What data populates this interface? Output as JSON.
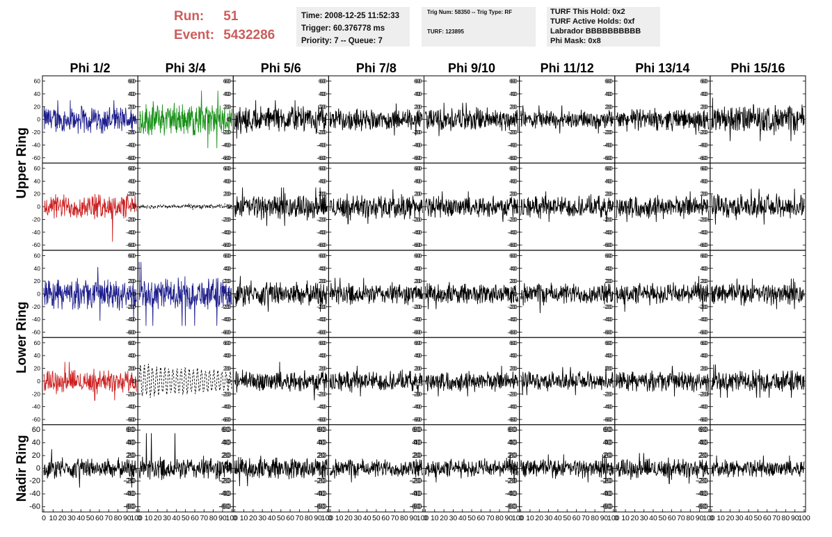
{
  "header": {
    "run_label": "Run:",
    "run_value": "51",
    "event_label": "Event:",
    "event_value": "5432286",
    "time": "Time: 2008-12-25 11:52:33",
    "trigger": "Trigger: 60.376778 ms",
    "priority": "Priority: 7 -- Queue: 7",
    "trig_num": "Trig Num: 58350 -- Trig Type: RF",
    "turf": "TURF: 123895",
    "turf_hold": "TURF This Hold: 0x2",
    "turf_active": "TURF Active Holds: 0xf",
    "labrador": "Labrador BBBBBBBBBB",
    "phi_mask": "Phi Mask: 0x8"
  },
  "chart_data": {
    "type": "line",
    "columns": [
      "Phi 1/2",
      "Phi 3/4",
      "Phi 5/6",
      "Phi 7/8",
      "Phi 9/10",
      "Phi 11/12",
      "Phi 13/14",
      "Phi 15/16"
    ],
    "ring_labels": [
      "Upper Ring",
      "Lower Ring",
      "Nadir Ring"
    ],
    "xlim": [
      0,
      100
    ],
    "ylim": [
      -65,
      65
    ],
    "x_ticks": [
      0,
      10,
      20,
      30,
      40,
      50,
      60,
      70,
      80,
      90,
      100
    ],
    "x_tick_labels": [
      "0",
      "10",
      "20",
      "30",
      "40",
      "50",
      "60",
      "70",
      "80",
      "90",
      "100"
    ],
    "y_ticks": [
      -60,
      -40,
      -20,
      0,
      20,
      40,
      60
    ],
    "grid": false,
    "colors": {
      "blue": "#1c1c8c",
      "green": "#159015",
      "red": "#cc2020",
      "black": "#000000"
    },
    "rows": [
      {
        "ring": "Upper Ring",
        "panels": [
          {
            "color": "blue",
            "amplitude": 19,
            "spike": 30
          },
          {
            "color": "green",
            "amplitude": 24,
            "spike": 45
          },
          {
            "color": "black",
            "amplitude": 19,
            "spike": 30
          },
          {
            "color": "black",
            "amplitude": 15,
            "spike": 25
          },
          {
            "color": "black",
            "amplitude": 17,
            "spike": 26
          },
          {
            "color": "black",
            "amplitude": 13,
            "spike": 22
          },
          {
            "color": "black",
            "amplitude": 15,
            "spike": 24
          },
          {
            "color": "black",
            "amplitude": 20,
            "spike": 34
          }
        ]
      },
      {
        "ring": "Upper Ring",
        "panels": [
          {
            "color": "red",
            "amplitude": 18,
            "spike": 55
          },
          {
            "color": "black",
            "amplitude": 3,
            "spike": 5,
            "style": "dashed"
          },
          {
            "color": "black",
            "amplitude": 17,
            "spike": 30
          },
          {
            "color": "black",
            "amplitude": 17,
            "spike": 27
          },
          {
            "color": "black",
            "amplitude": 15,
            "spike": 24
          },
          {
            "color": "black",
            "amplitude": 15,
            "spike": 24
          },
          {
            "color": "black",
            "amplitude": 16,
            "spike": 24
          },
          {
            "color": "black",
            "amplitude": 17,
            "spike": 28
          }
        ]
      },
      {
        "ring": "Lower Ring",
        "panels": [
          {
            "color": "blue",
            "amplitude": 21,
            "spike": 42
          },
          {
            "color": "blue",
            "amplitude": 22,
            "spike": 50
          },
          {
            "color": "black",
            "amplitude": 17,
            "spike": 28
          },
          {
            "color": "black",
            "amplitude": 15,
            "spike": 25
          },
          {
            "color": "black",
            "amplitude": 15,
            "spike": 24
          },
          {
            "color": "black",
            "amplitude": 15,
            "spike": 30
          },
          {
            "color": "black",
            "amplitude": 15,
            "spike": 28
          },
          {
            "color": "black",
            "amplitude": 15,
            "spike": 24
          }
        ]
      },
      {
        "ring": "Lower Ring",
        "panels": [
          {
            "color": "red",
            "amplitude": 16,
            "spike": 30
          },
          {
            "color": "black",
            "amplitude": 26,
            "spike": 55,
            "style": "dashed"
          },
          {
            "color": "black",
            "amplitude": 15,
            "spike": 30
          },
          {
            "color": "black",
            "amplitude": 14,
            "spike": 24
          },
          {
            "color": "black",
            "amplitude": 14,
            "spike": 24
          },
          {
            "color": "black",
            "amplitude": 13,
            "spike": 22
          },
          {
            "color": "black",
            "amplitude": 14,
            "spike": 24
          },
          {
            "color": "black",
            "amplitude": 15,
            "spike": 26
          }
        ]
      },
      {
        "ring": "Nadir Ring",
        "panels": [
          {
            "color": "black",
            "amplitude": 14,
            "spike": 30
          },
          {
            "color": "black",
            "amplitude": 16,
            "spike": 55
          },
          {
            "color": "black",
            "amplitude": 16,
            "spike": 28
          },
          {
            "color": "black",
            "amplitude": 13,
            "spike": 22
          },
          {
            "color": "black",
            "amplitude": 13,
            "spike": 22
          },
          {
            "color": "black",
            "amplitude": 13,
            "spike": 22
          },
          {
            "color": "black",
            "amplitude": 14,
            "spike": 24
          },
          {
            "color": "black",
            "amplitude": 12,
            "spike": 20
          }
        ]
      }
    ]
  }
}
